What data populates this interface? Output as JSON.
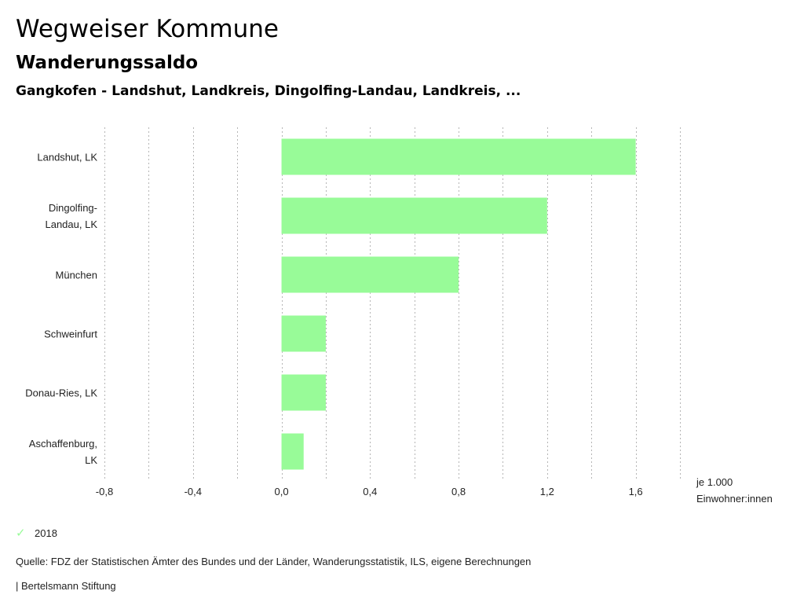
{
  "header": {
    "title": "Wegweiser Kommune",
    "subtitle": "Wanderungssaldo",
    "selection": "Gangkofen - Landshut, Landkreis, Dingolfing-Landau, Landkreis, ..."
  },
  "chart_data": {
    "type": "bar",
    "orientation": "horizontal",
    "categories": [
      [
        "Landshut, LK"
      ],
      [
        "Dingolfing-",
        "Landau, LK"
      ],
      [
        "München"
      ],
      [
        "Schweinfurt"
      ],
      [
        "Donau-Ries, LK"
      ],
      [
        "Aschaffenburg,",
        "LK"
      ]
    ],
    "series": [
      {
        "name": "2018",
        "color": "#98fb98",
        "values": [
          1.6,
          1.2,
          0.8,
          0.2,
          0.2,
          0.1
        ]
      }
    ],
    "xlim": [
      -0.8,
      1.8
    ],
    "ticks": [
      -0.8,
      -0.4,
      0.0,
      0.4,
      0.8,
      1.2,
      1.6
    ],
    "tick_labels": [
      "-0,8",
      "-0,4",
      "0,0",
      "0,4",
      "0,8",
      "1,2",
      "1,6"
    ],
    "unit_label": [
      "je 1.000",
      "Einwohner:innen"
    ],
    "grid": true
  },
  "legend": {
    "label": "2018"
  },
  "footer": {
    "source": "Quelle: FDZ der Statistischen Ämter des Bundes und der Länder, Wanderungsstatistik, ILS, eigene Berechnungen",
    "credit": "| Bertelsmann Stiftung"
  }
}
